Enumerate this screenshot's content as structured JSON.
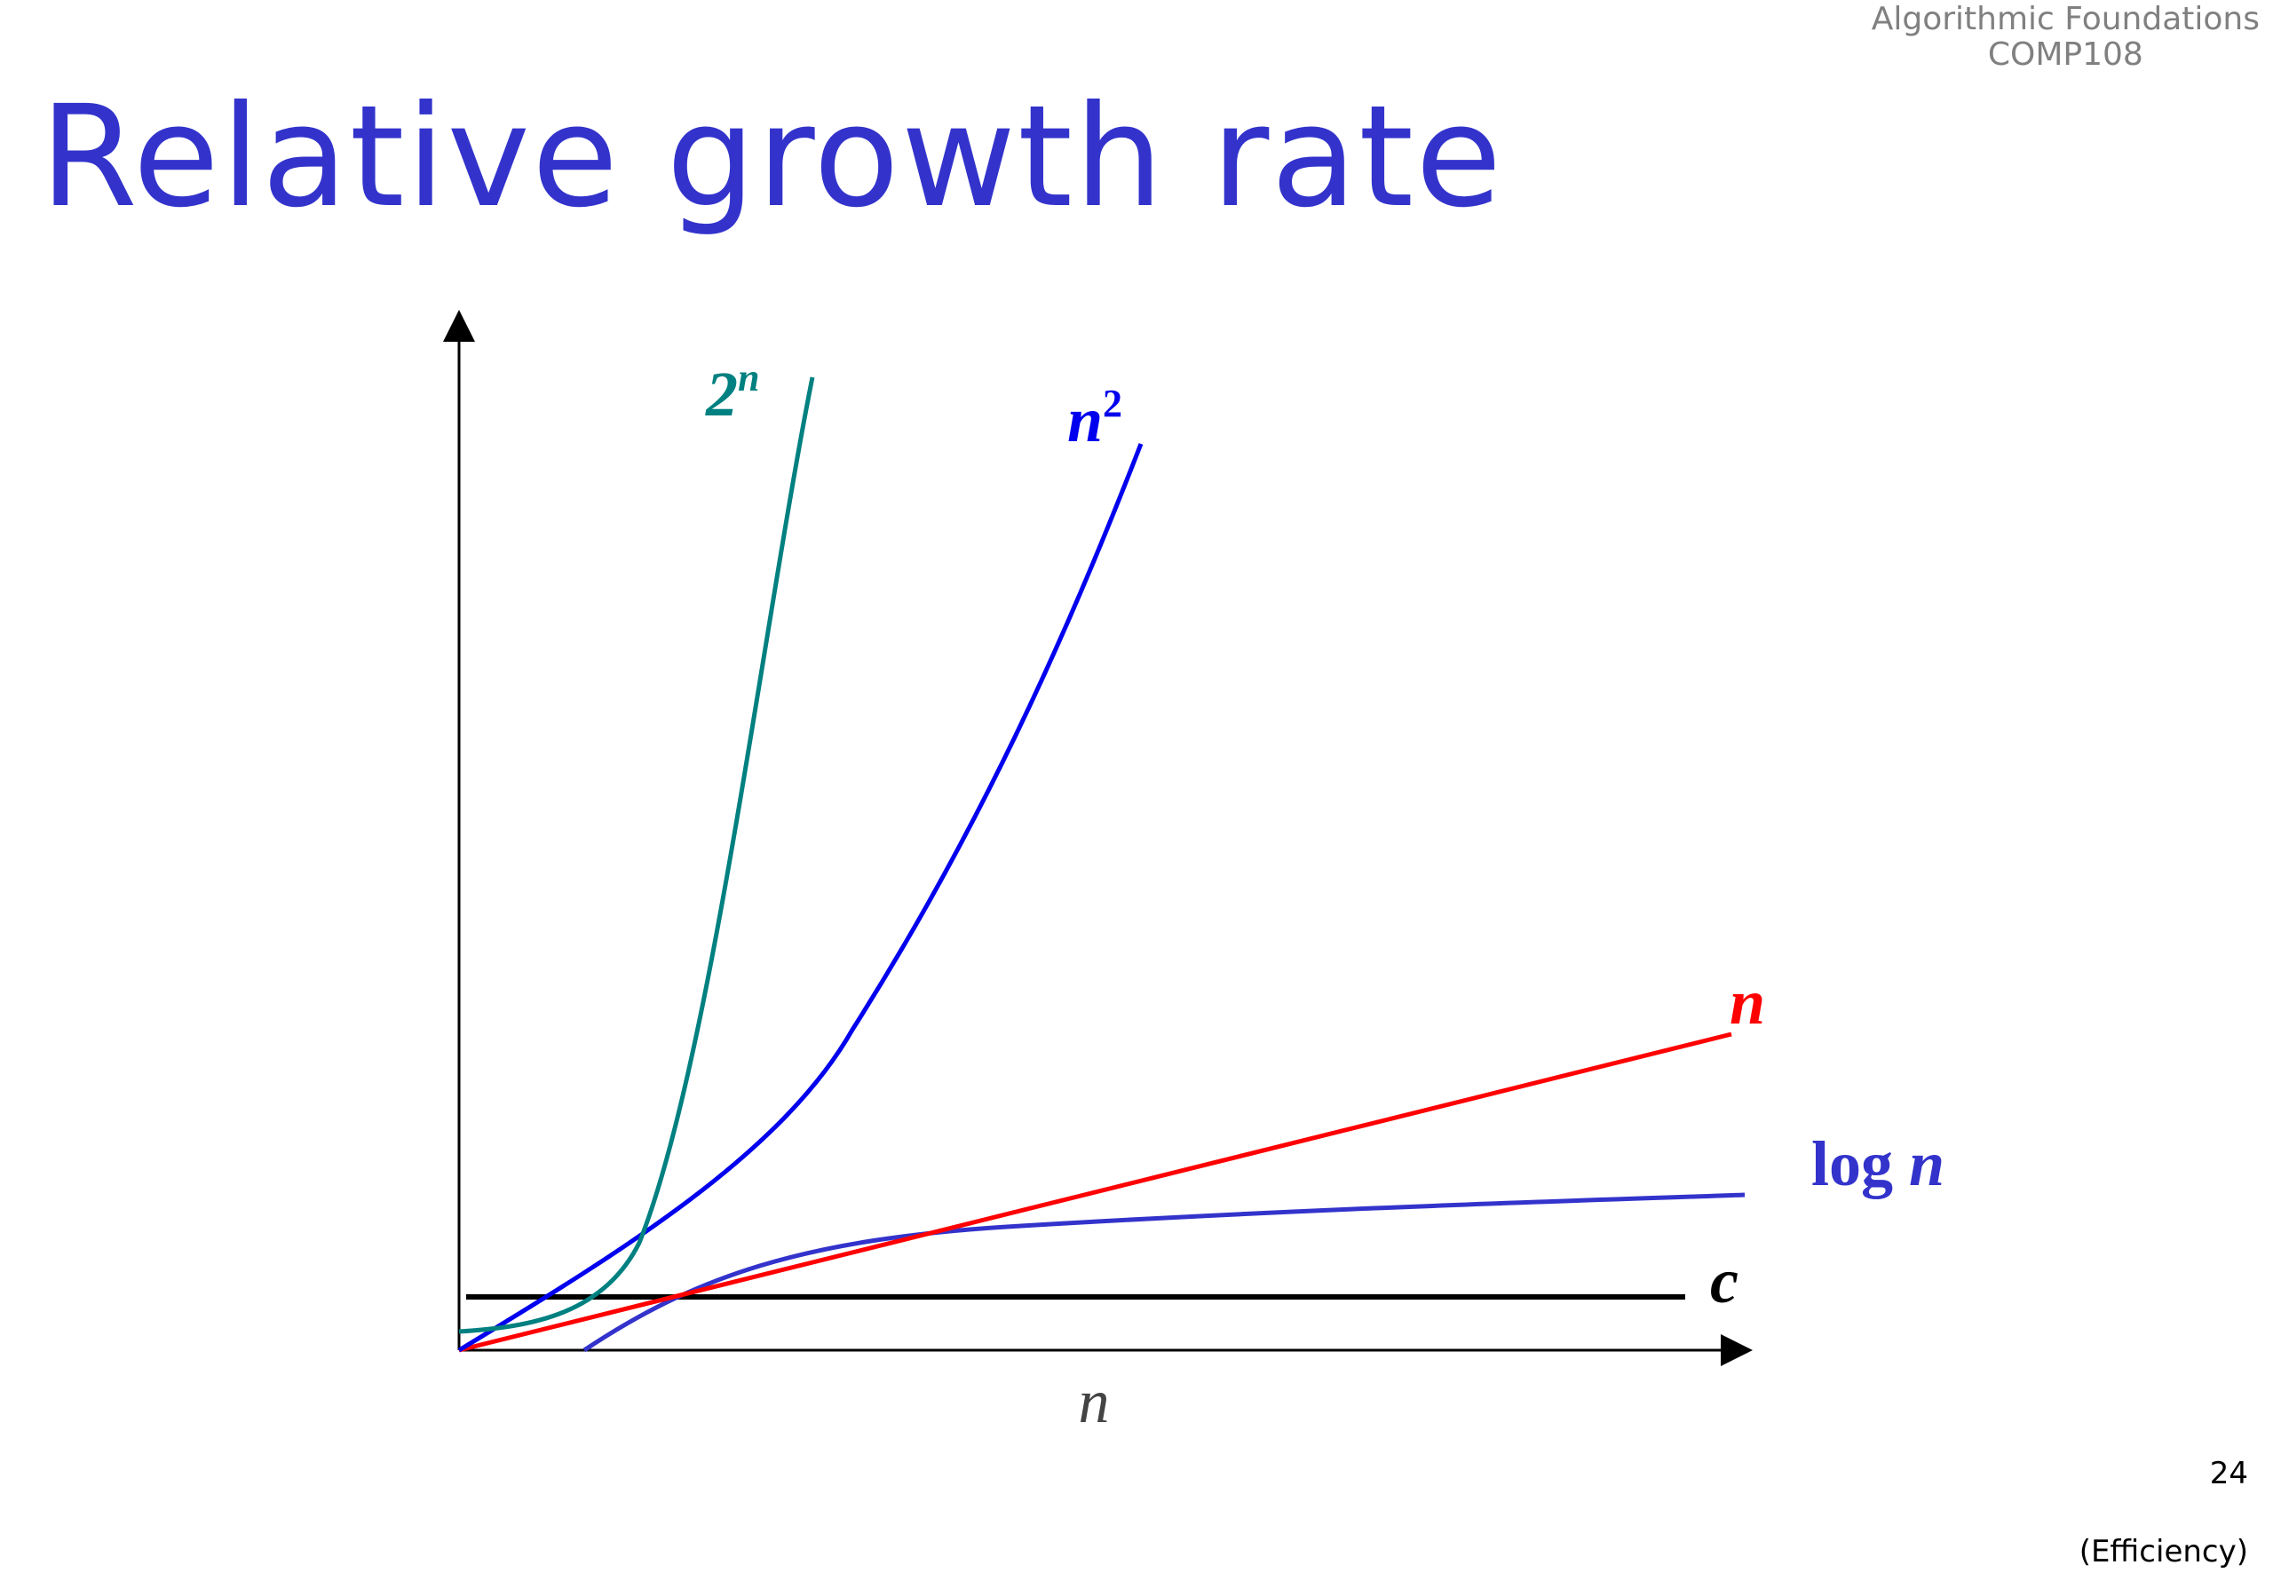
{
  "header": {
    "course_line1": "Algorithmic Foundations",
    "course_line2": "COMP108"
  },
  "title": "Relative growth rate",
  "footer": {
    "page_number": "24",
    "section": "(Efficiency)"
  },
  "chart_data": {
    "type": "line",
    "title": "",
    "xlabel": "n",
    "ylabel": "",
    "xlim": [
      0,
      1
    ],
    "ylim": [
      0,
      1
    ],
    "grid": false,
    "legend": "none; curves labelled at their ends",
    "series": [
      {
        "name": "2",
        "superscript": "n",
        "color": "#008080"
      },
      {
        "name": "n",
        "superscript": "2",
        "color": "#0000ee"
      },
      {
        "name": "n",
        "color": "#ff0000"
      },
      {
        "name": "log ",
        "name_italic": "n",
        "color": "#3333cc"
      },
      {
        "name": "c",
        "color": "#000000"
      }
    ]
  }
}
